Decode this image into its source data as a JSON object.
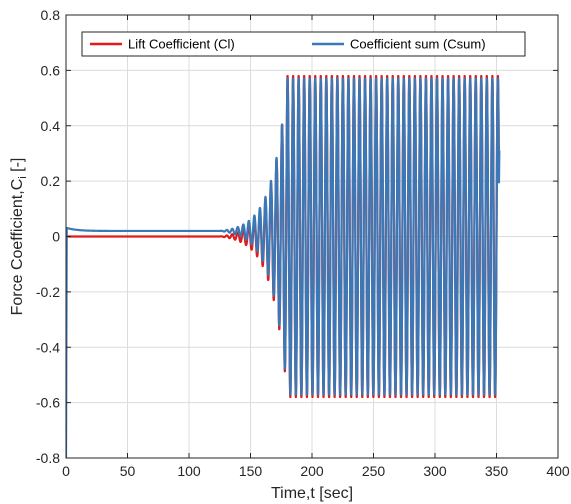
{
  "chart_data": {
    "type": "line",
    "xlabel": "Time,t [sec]",
    "ylabel_main": "Force Coefficient,C",
    "ylabel_sub": "i",
    "ylabel_unit": " [-]",
    "xlim": [
      0,
      400
    ],
    "ylim": [
      -0.8,
      0.8
    ],
    "x_ticks": [
      0,
      50,
      100,
      150,
      200,
      250,
      300,
      350,
      400
    ],
    "y_ticks": [
      -0.8,
      -0.6,
      -0.4,
      -0.2,
      0,
      0.2,
      0.4,
      0.6,
      0.8
    ],
    "x_tick_labels": [
      "0",
      "50",
      "100",
      "150",
      "200",
      "250",
      "300",
      "350",
      "400"
    ],
    "y_tick_labels": [
      "-0.8",
      "-0.6",
      "-0.4",
      "-0.2",
      "0",
      "0.2",
      "0.4",
      "0.6",
      "0.8"
    ],
    "grid": true,
    "legend_position": "top",
    "series": [
      {
        "name": "Lift Coefficient (Cl)",
        "color": "#e31a1c",
        "description_points": [
          [
            0,
            0.0
          ],
          [
            20,
            0.0
          ],
          [
            120,
            0.0
          ],
          [
            135,
            0.0
          ],
          [
            140,
            0.01
          ],
          [
            150,
            -0.05
          ],
          [
            160,
            -0.3
          ],
          [
            170,
            -0.5
          ],
          [
            180,
            -0.57
          ],
          [
            190,
            -0.58
          ],
          [
            350,
            -0.58
          ]
        ],
        "baseline": 0.0,
        "max_amplitude": 0.58
      },
      {
        "name": "Coefficient sum (Csum)",
        "color": "#3b78b5",
        "description_points": [
          [
            0,
            -0.8
          ],
          [
            1,
            0.03
          ],
          [
            10,
            0.025
          ],
          [
            20,
            0.02
          ],
          [
            120,
            0.02
          ],
          [
            140,
            0.02
          ],
          [
            150,
            -0.05
          ],
          [
            160,
            -0.3
          ],
          [
            170,
            -0.5
          ],
          [
            180,
            -0.56
          ],
          [
            190,
            -0.57
          ],
          [
            350,
            -0.57
          ],
          [
            352,
            0.31
          ]
        ],
        "baseline": 0.02,
        "max_amplitude": 0.58
      }
    ],
    "oscillation": {
      "start_time": 125,
      "growth_end_time": 180,
      "end_time": 352,
      "period": 4.5,
      "final_value_csum": 0.31
    }
  }
}
